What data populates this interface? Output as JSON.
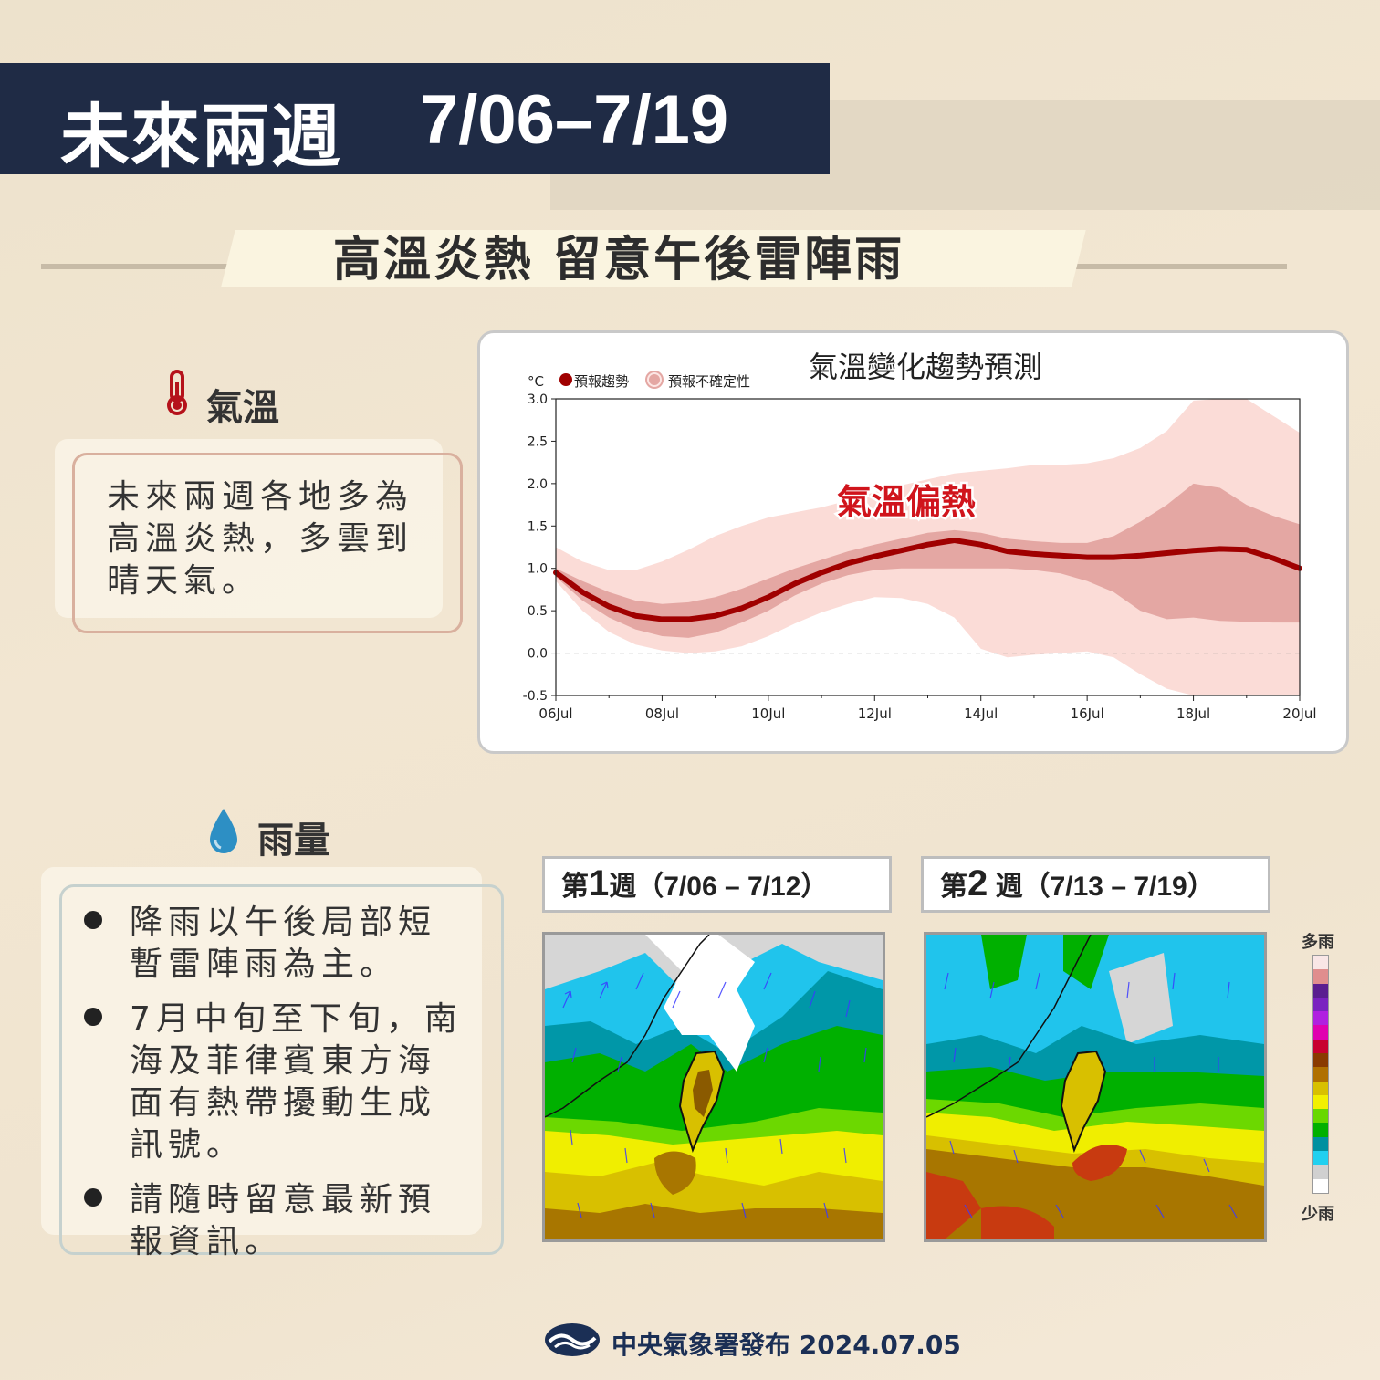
{
  "header": {
    "title": "未來兩週",
    "date_range": "7/06–7/19"
  },
  "headline": "高溫炎熱 留意午後雷陣雨",
  "temperature_section": {
    "icon": "thermometer-icon",
    "heading": "氣溫",
    "description": "未來兩週各地多為高溫炎熱，多雲到晴天氣。"
  },
  "rain_section": {
    "icon": "water-drop-icon",
    "heading": "雨量",
    "bullets": [
      "降雨以午後局部短暫雷陣雨為主。",
      "7月中旬至下旬，南海及菲律賓東方海面有熱帶擾動生成訊號。",
      "請隨時留意最新預報資訊。"
    ]
  },
  "chart_data": {
    "type": "line",
    "title": "氣溫變化趨勢預測",
    "unit": "°C",
    "legend": [
      {
        "name": "預報趨勢",
        "color": "#a00000"
      },
      {
        "name": "預報不確定性",
        "color": "#e4a7a3"
      }
    ],
    "annotation": "氣溫偏熱",
    "x_ticks": [
      "06Jul",
      "08Jul",
      "10Jul",
      "12Jul",
      "14Jul",
      "16Jul",
      "18Jul",
      "20Jul"
    ],
    "y_ticks": [
      "3.0",
      "2.5",
      "2.0",
      "1.5",
      "1.0",
      "0.5",
      "0.0",
      "-0.5"
    ],
    "ylim": [
      -0.5,
      3.0
    ],
    "xlim": [
      0,
      14
    ],
    "x": [
      0,
      0.5,
      1,
      1.5,
      2,
      2.5,
      3,
      3.5,
      4,
      4.5,
      5,
      5.5,
      6,
      6.5,
      7,
      7.5,
      8,
      8.5,
      9,
      9.5,
      10,
      10.5,
      11,
      11.5,
      12,
      12.5,
      13,
      13.5,
      14
    ],
    "trend": [
      0.95,
      0.72,
      0.55,
      0.44,
      0.4,
      0.4,
      0.44,
      0.53,
      0.66,
      0.82,
      0.95,
      1.06,
      1.14,
      1.21,
      1.28,
      1.33,
      1.28,
      1.2,
      1.17,
      1.15,
      1.13,
      1.13,
      1.15,
      1.18,
      1.21,
      1.23,
      1.22,
      1.12,
      1.0
    ],
    "inner_upper": [
      1.0,
      0.85,
      0.72,
      0.62,
      0.58,
      0.6,
      0.66,
      0.76,
      0.88,
      1.0,
      1.1,
      1.2,
      1.28,
      1.35,
      1.42,
      1.45,
      1.42,
      1.35,
      1.32,
      1.3,
      1.3,
      1.38,
      1.55,
      1.75,
      2.0,
      1.95,
      1.75,
      1.62,
      1.52
    ],
    "inner_lower": [
      0.9,
      0.62,
      0.42,
      0.28,
      0.2,
      0.18,
      0.24,
      0.36,
      0.5,
      0.68,
      0.82,
      0.92,
      0.98,
      1.0,
      1.0,
      1.0,
      1.0,
      1.0,
      0.98,
      0.94,
      0.85,
      0.72,
      0.5,
      0.4,
      0.42,
      0.38,
      0.37,
      0.36,
      0.36
    ],
    "outer_upper": [
      1.25,
      1.08,
      0.98,
      0.98,
      1.08,
      1.22,
      1.38,
      1.5,
      1.6,
      1.66,
      1.72,
      1.8,
      1.9,
      1.98,
      2.05,
      2.12,
      2.15,
      2.18,
      2.22,
      2.22,
      2.24,
      2.3,
      2.42,
      2.62,
      2.98,
      3.0,
      3.0,
      2.8,
      2.6
    ],
    "outer_lower": [
      0.85,
      0.5,
      0.25,
      0.1,
      0.03,
      0.0,
      0.02,
      0.08,
      0.2,
      0.35,
      0.48,
      0.58,
      0.66,
      0.65,
      0.58,
      0.42,
      0.05,
      -0.05,
      -0.02,
      0.0,
      0.02,
      -0.05,
      -0.25,
      -0.42,
      -0.5,
      -0.5,
      -0.5,
      -0.5,
      -0.5
    ],
    "reference_line": 0.0
  },
  "maps": [
    {
      "label_prefix": "第",
      "week_num": "1",
      "label_suffix": "週",
      "range": "（7/06 – 7/12）"
    },
    {
      "label_prefix": "第",
      "week_num": "2",
      "label_suffix": "週",
      "range": "（7/13 – 7/19）"
    }
  ],
  "rain_legend": {
    "top_label": "多雨",
    "bottom_label": "少雨",
    "colors": [
      "#f9e6e6",
      "#e08e8e",
      "#5a1e90",
      "#7a22c0",
      "#b020e0",
      "#e000b0",
      "#c80030",
      "#8a3a00",
      "#b07000",
      "#d8c000",
      "#f2f000",
      "#68d800",
      "#00b000",
      "#0090a0",
      "#20d0f0",
      "#d0d0d0",
      "#ffffff"
    ]
  },
  "footer": {
    "logo": "cwa-logo-icon",
    "text": "中央氣象署發布 2024.07.05"
  }
}
